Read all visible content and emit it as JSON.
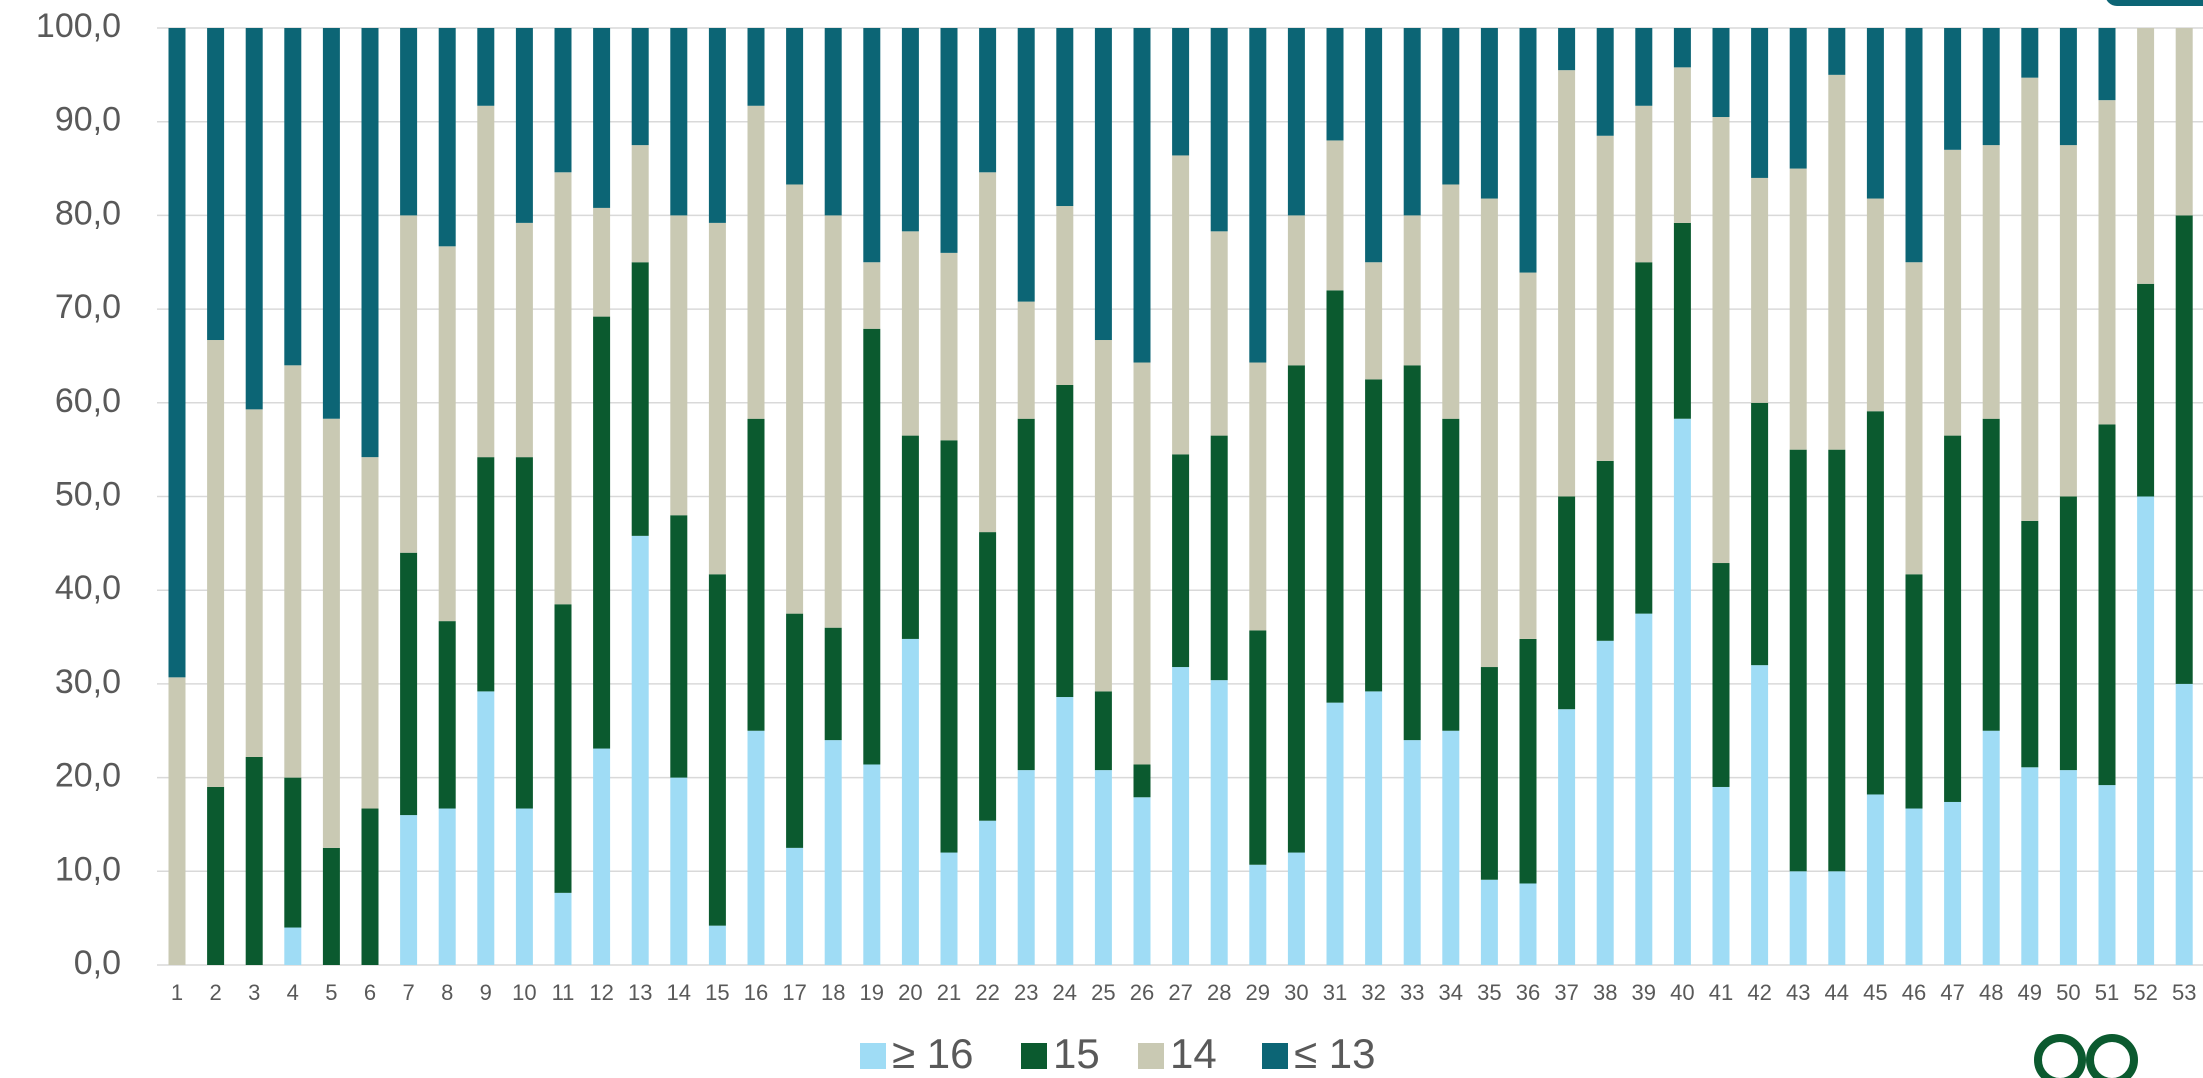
{
  "chart_data": {
    "type": "stacked_bar",
    "categories": [
      "1",
      "2",
      "3",
      "4",
      "5",
      "6",
      "7",
      "8",
      "9",
      "10",
      "11",
      "12",
      "13",
      "14",
      "15",
      "16",
      "17",
      "18",
      "19",
      "20",
      "21",
      "22",
      "23",
      "24",
      "25",
      "26",
      "27",
      "28",
      "29",
      "30",
      "31",
      "32",
      "33",
      "34",
      "35",
      "36",
      "37",
      "38",
      "39",
      "40",
      "41",
      "42",
      "43",
      "44",
      "45",
      "46",
      "47",
      "48",
      "49",
      "50",
      "51",
      "52",
      "53"
    ],
    "series": [
      {
        "name": "≥ 16",
        "color": "#9fdcf5",
        "values": [
          0,
          0,
          0,
          4,
          0,
          0,
          16,
          16.7,
          29.2,
          16.7,
          7.7,
          23.1,
          45.8,
          20,
          4.2,
          25,
          12.5,
          24,
          21.4,
          34.8,
          12,
          15.4,
          20.8,
          28.6,
          20.8,
          17.9,
          31.8,
          30.4,
          10.7,
          12,
          28,
          29.2,
          24,
          25,
          9.1,
          8.7,
          27.3,
          34.6,
          37.5,
          58.3,
          19,
          32,
          10,
          10,
          18.2,
          16.7,
          17.4,
          25,
          21.1,
          20.8,
          19.2,
          50,
          30
        ]
      },
      {
        "name": "15",
        "color": "#0b5a2f",
        "values": [
          0,
          19,
          22.2,
          16,
          12.5,
          16.7,
          28,
          20,
          25,
          37.5,
          30.8,
          46.1,
          29.2,
          28,
          37.5,
          33.3,
          25,
          12,
          46.5,
          21.7,
          44,
          30.8,
          37.5,
          33.3,
          8.4,
          3.5,
          22.7,
          26.1,
          25,
          52,
          44,
          33.3,
          40,
          33.3,
          22.7,
          26.1,
          22.7,
          19.2,
          37.5,
          20.9,
          23.9,
          28,
          45,
          45,
          40.9,
          25,
          39.1,
          33.3,
          26.3,
          29.2,
          38.5,
          22.7,
          50
        ]
      },
      {
        "name": "14",
        "color": "#c9c9b3",
        "values": [
          30.7,
          47.7,
          37.1,
          44,
          45.8,
          37.5,
          36,
          40,
          37.5,
          25,
          46.1,
          11.6,
          12.5,
          32,
          37.5,
          33.4,
          45.8,
          44,
          7.1,
          21.8,
          20,
          38.4,
          12.5,
          19.1,
          37.5,
          42.9,
          31.9,
          21.8,
          28.6,
          16,
          16,
          12.5,
          16,
          25,
          50,
          39.1,
          45.5,
          34.7,
          16.7,
          16.6,
          47.6,
          24,
          30,
          40,
          22.7,
          33.3,
          30.5,
          29.2,
          47.3,
          37.5,
          34.6,
          27.3,
          20
        ]
      },
      {
        "name": "≤ 13",
        "color": "#0c6575",
        "values": [
          69.3,
          33.3,
          40.7,
          36,
          41.7,
          45.8,
          20,
          23.3,
          8.3,
          20.8,
          15.4,
          19.2,
          12.5,
          20,
          20.8,
          8.3,
          16.7,
          20,
          25,
          21.7,
          24,
          15.4,
          29.2,
          19,
          33.3,
          35.7,
          13.6,
          21.7,
          35.7,
          20,
          12,
          25,
          20,
          16.7,
          18.2,
          26.1,
          4.5,
          11.5,
          8.3,
          4.2,
          9.5,
          16,
          15,
          5,
          18.2,
          25,
          13,
          12.5,
          5.3,
          12.5,
          7.7,
          0,
          0
        ]
      }
    ],
    "ylim": [
      0,
      100
    ],
    "yticks": [
      {
        "value": 0,
        "label": "0,0"
      },
      {
        "value": 10,
        "label": "10,0"
      },
      {
        "value": 20,
        "label": "20,0"
      },
      {
        "value": 30,
        "label": "30,0"
      },
      {
        "value": 40,
        "label": "40,0"
      },
      {
        "value": 50,
        "label": "50,0"
      },
      {
        "value": 60,
        "label": "60,0"
      },
      {
        "value": 70,
        "label": "70,0"
      },
      {
        "value": 80,
        "label": "80,0"
      },
      {
        "value": 90,
        "label": "90,0"
      },
      {
        "value": 100,
        "label": "100,0"
      }
    ],
    "grid": true,
    "legend": "bottom"
  }
}
